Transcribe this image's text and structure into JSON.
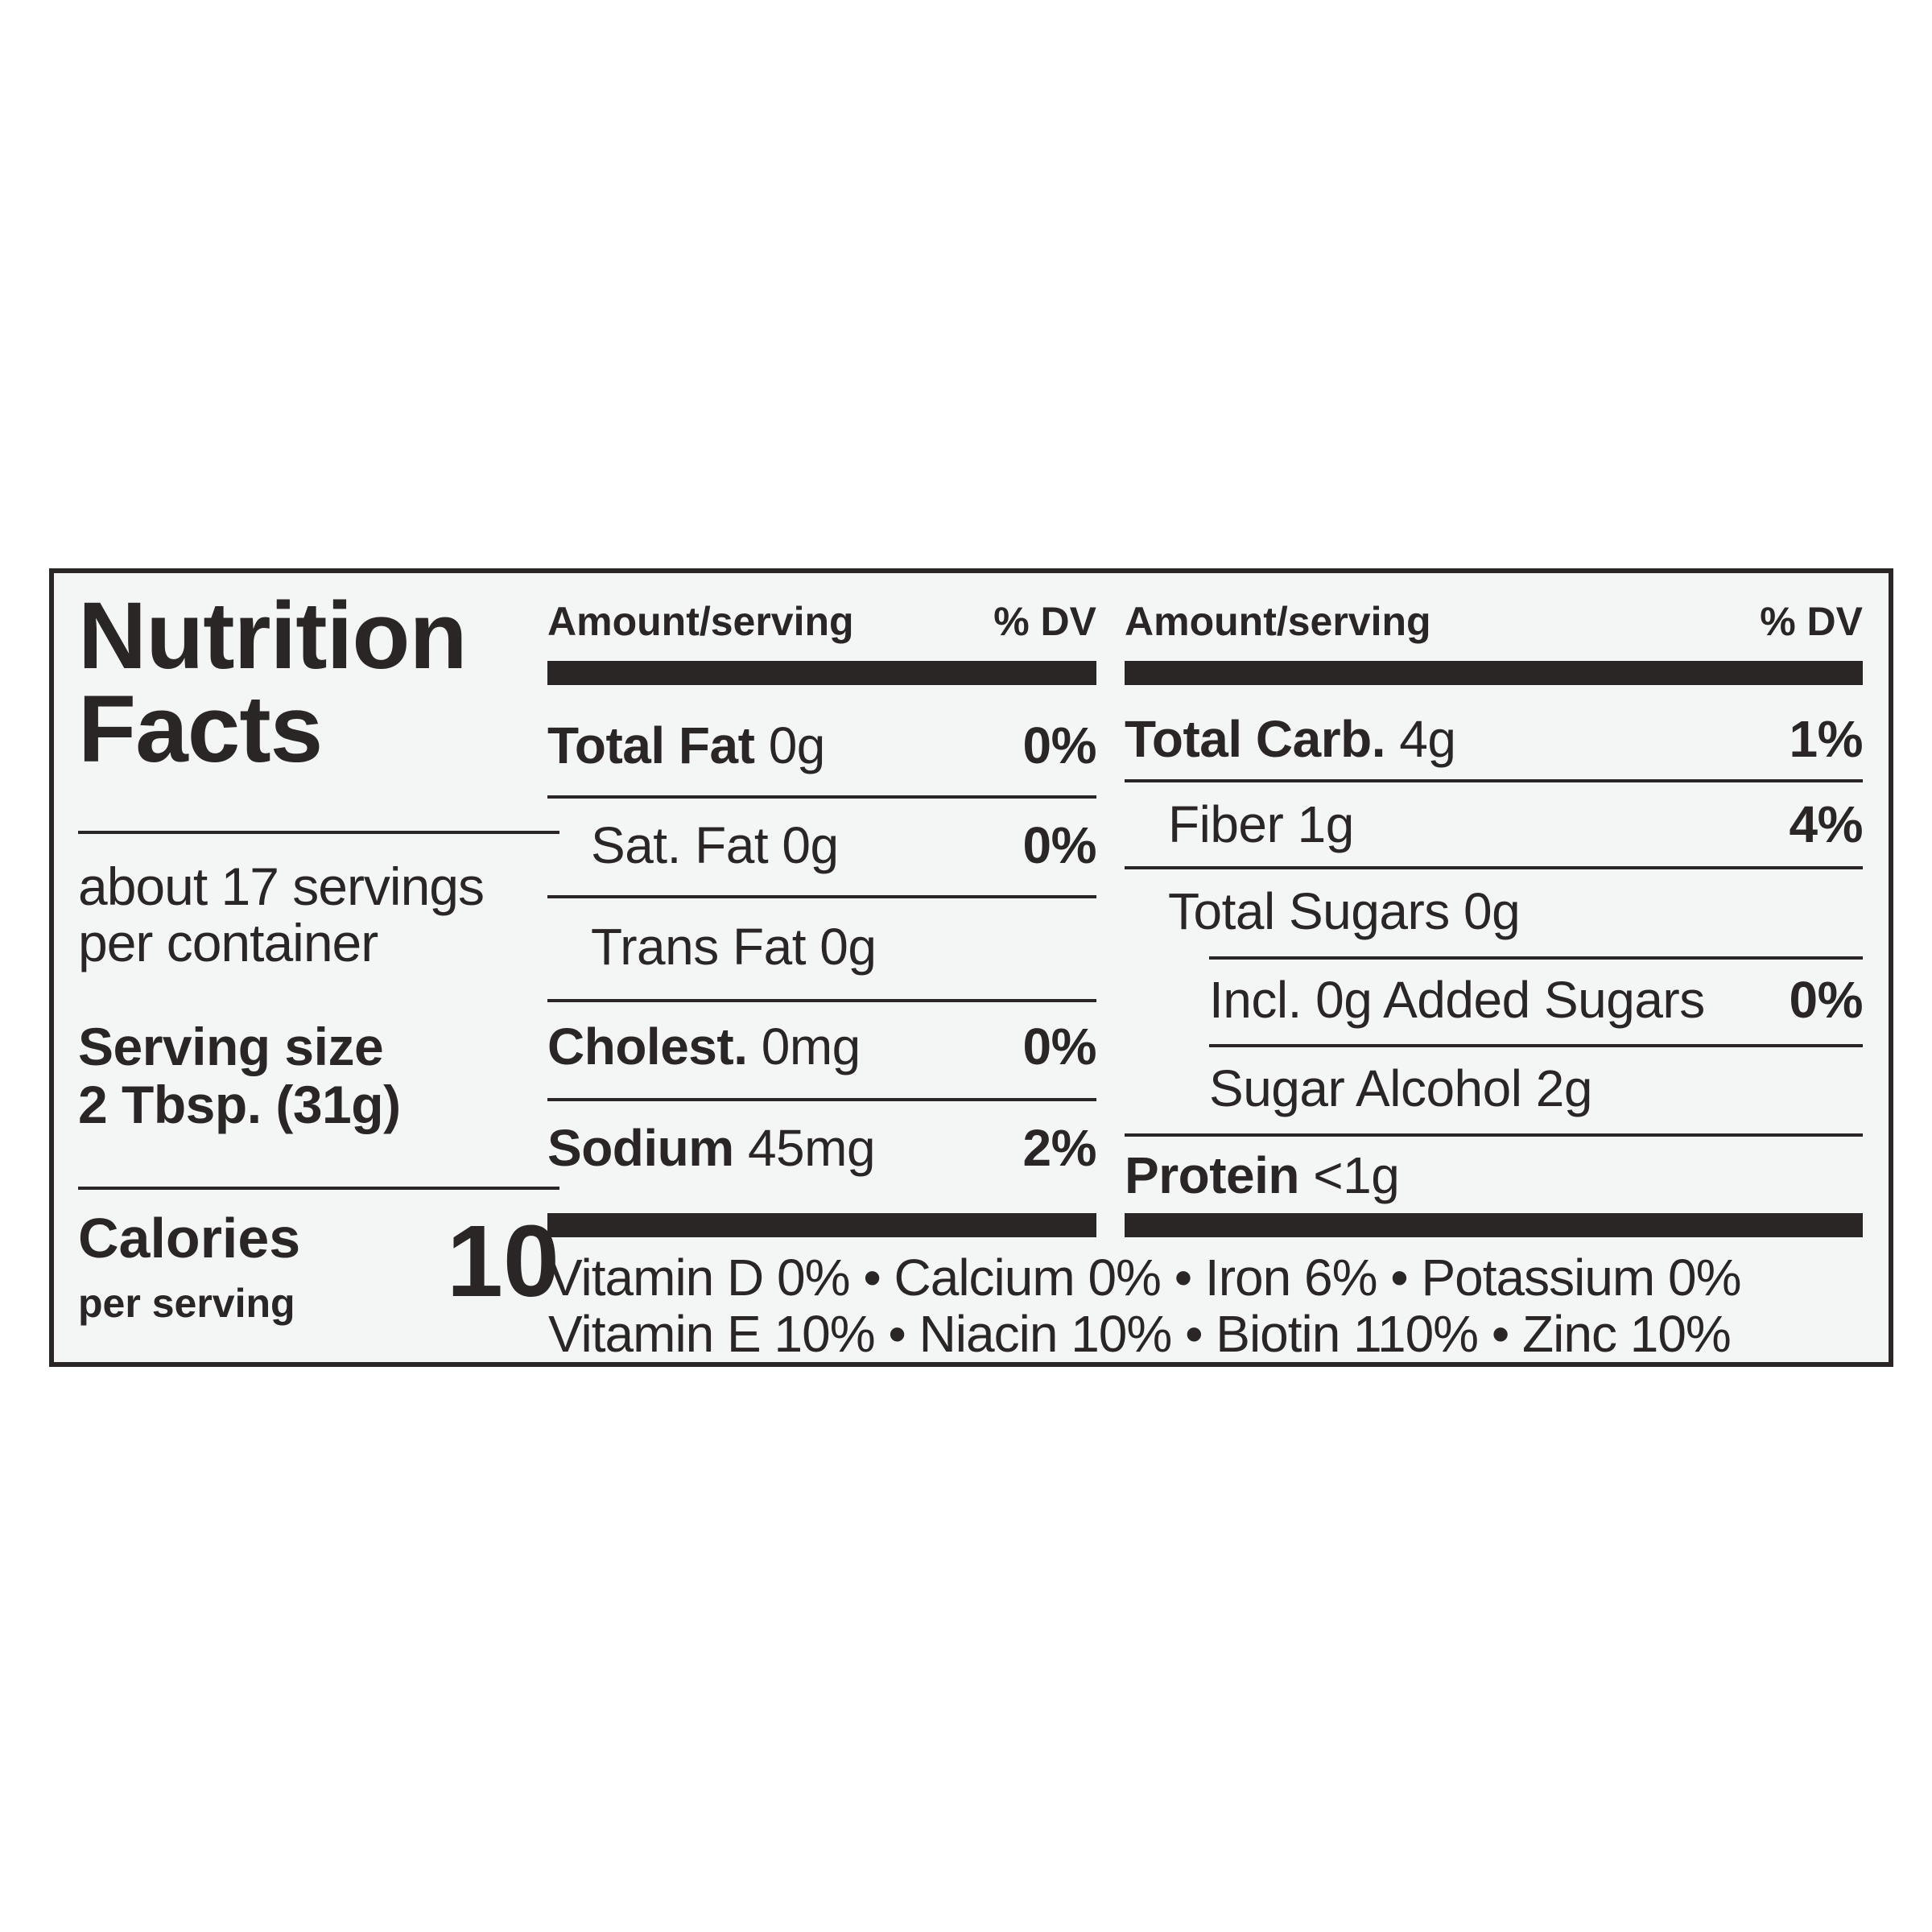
{
  "title_line1": "Nutrition",
  "title_line2": "Facts",
  "servings_line1": "about 17 servings",
  "servings_line2": "per container",
  "serving_size_label": "Serving size",
  "serving_size_value": "2 Tbsp. (31g)",
  "calories_label": "Calories",
  "calories_sublabel": "per serving",
  "calories_value": "10",
  "header_amount": "Amount/serving",
  "header_dv": "% DV",
  "left_rows": [
    {
      "name": "Total Fat",
      "amount": "0g",
      "dv": "0%"
    },
    {
      "name": "Sat. Fat",
      "amount": "0g",
      "dv": "0%"
    },
    {
      "name": "Trans Fat",
      "amount": "0g",
      "dv": ""
    },
    {
      "name": "Cholest.",
      "amount": "0mg",
      "dv": "0%"
    },
    {
      "name": "Sodium",
      "amount": "45mg",
      "dv": "2%"
    }
  ],
  "right_rows": [
    {
      "name": "Total Carb.",
      "amount": "4g",
      "dv": "1%"
    },
    {
      "name": "Fiber",
      "amount": "1g",
      "dv": "4%"
    },
    {
      "name": "Total Sugars",
      "amount": "0g",
      "dv": ""
    },
    {
      "name": "Incl. 0g Added Sugars",
      "amount": "",
      "dv": "0%"
    },
    {
      "name": "Sugar Alcohol",
      "amount": "2g",
      "dv": ""
    },
    {
      "name": "Protein",
      "amount": "<1g",
      "dv": ""
    }
  ],
  "vitamins_line1": "Vitamin D 0% • Calcium 0% • Iron 6% • Potassium 0%",
  "vitamins_line2": "Vitamin E 10% • Niacin 10% • Biotin 110% • Zinc 10%"
}
